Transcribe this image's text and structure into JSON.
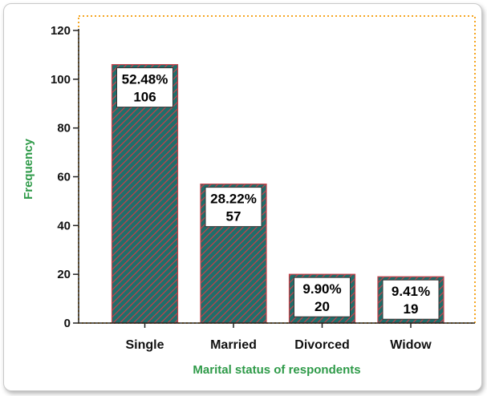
{
  "chart_data": {
    "type": "bar",
    "xlabel": "Marital status of respondents",
    "ylabel": "Frequency",
    "categories": [
      "Single",
      "Married",
      "Divorced",
      "Widow"
    ],
    "values": [
      106,
      57,
      20,
      19
    ],
    "percent_labels": [
      "52.48%",
      "28.22%",
      "9.90%",
      "9.41%"
    ],
    "count_labels": [
      "106",
      "57",
      "20",
      "19"
    ],
    "ylim": [
      0,
      120
    ],
    "yticks": [
      0,
      20,
      40,
      60,
      80,
      100,
      120
    ],
    "ytick_labels": [
      "0",
      "20",
      "40",
      "60",
      "80",
      "100",
      "120"
    ],
    "grid": false,
    "colors": {
      "bar_fill": "#1f6e6a",
      "bar_hatch": "#c8414b",
      "axis_title": "#2e9a48",
      "plot_border": "#f5a623",
      "axis": "#222222"
    }
  }
}
